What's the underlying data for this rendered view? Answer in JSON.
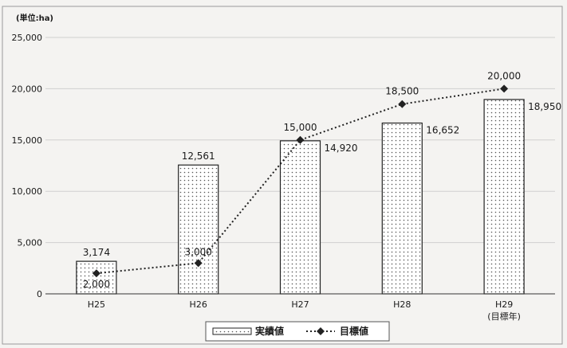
{
  "chart_data": {
    "type": "bar",
    "unit_label": "(単位:ha)",
    "categories": [
      "H25",
      "H26",
      "H27",
      "H28",
      "H29"
    ],
    "category_sublabels": [
      "",
      "",
      "",
      "",
      "(目標年)"
    ],
    "ylim": [
      0,
      25000
    ],
    "yticks": [
      0,
      5000,
      10000,
      15000,
      20000,
      25000
    ],
    "ytick_labels": [
      "0",
      "5,000",
      "10,000",
      "15,000",
      "20,000",
      "25,000"
    ],
    "grid": "horizontal",
    "legend_position": "bottom",
    "series": [
      {
        "name": "実績値",
        "kind": "bar",
        "values": [
          3174,
          12561,
          14920,
          16652,
          18950
        ],
        "labels": [
          "3,174",
          "12,561",
          "14,920",
          "16,652",
          "18,950"
        ]
      },
      {
        "name": "目標値",
        "kind": "line",
        "style": "dotted-diamond",
        "values": [
          2000,
          3000,
          15000,
          18500,
          20000
        ],
        "labels": [
          "2,000",
          "3,000",
          "15,000",
          "18,500",
          "20,000"
        ]
      }
    ],
    "colors": {
      "bar_fill": "#ffffff",
      "bar_dots": "#555555",
      "line": "#222222",
      "grid": "#d0d0d0"
    }
  }
}
